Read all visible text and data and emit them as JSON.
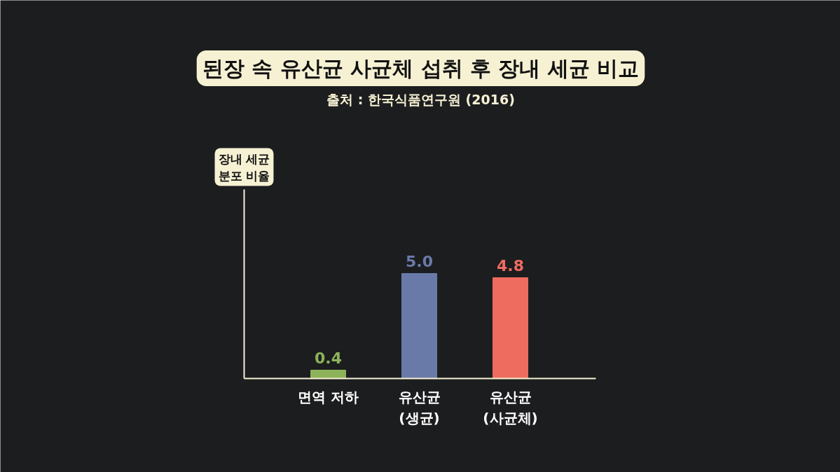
{
  "chart_data": {
    "type": "bar",
    "title": "된장 속 유산균 사균체 섭취 후 장내 세균 비교",
    "subtitle": "출처 : 한국식품연구원 (2016)",
    "annotations": [
      "장내 세균\n분포 비율"
    ],
    "categories": [
      "면역 저하",
      "유산균\n(생균)",
      "유산균\n(사균체)"
    ],
    "values": [
      0.4,
      5.0,
      4.8
    ],
    "colors": [
      "#8db35a",
      "#6a7aa8",
      "#ee6b60"
    ],
    "value_labels": [
      "0.4",
      "5.0",
      "4.8"
    ]
  }
}
